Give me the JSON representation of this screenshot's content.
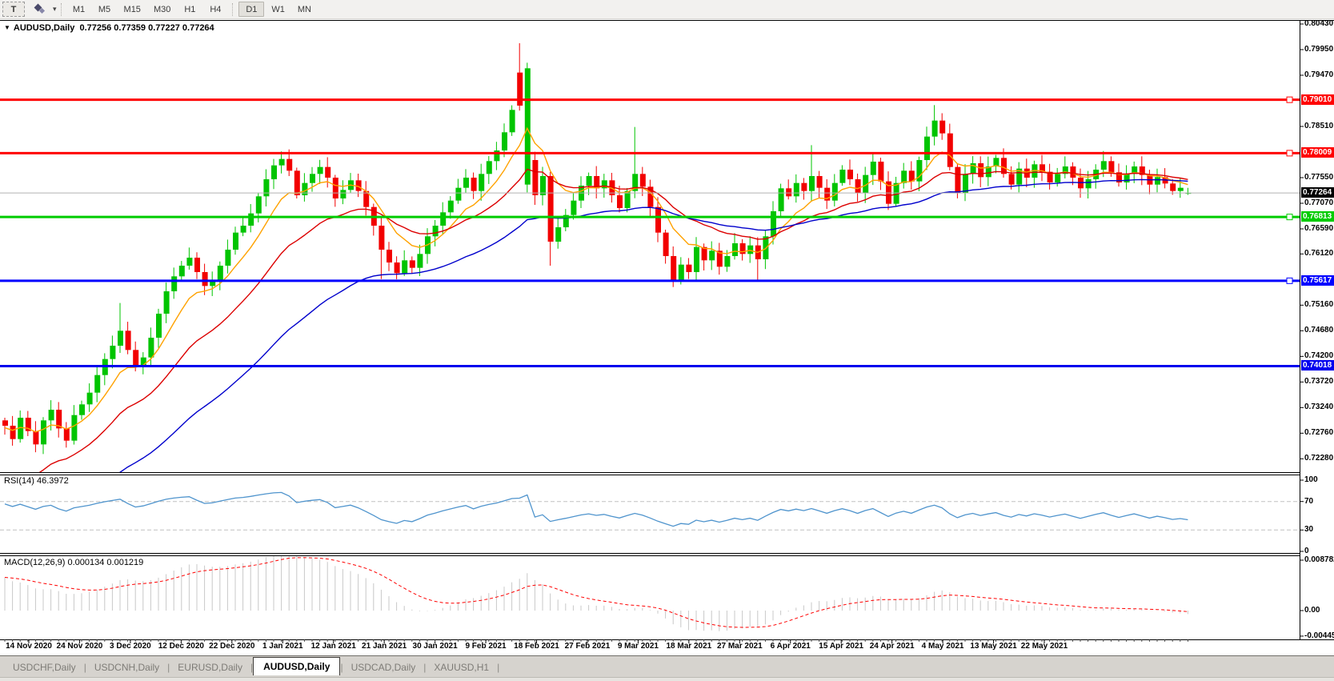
{
  "toolbar": {
    "t_label": "T",
    "timeframe_groups": [
      [
        "M1",
        "M5",
        "M15",
        "M30",
        "H1",
        "H4"
      ],
      [
        "D1",
        "W1",
        "MN"
      ]
    ],
    "active_timeframe": "D1"
  },
  "header": {
    "collapse_icon": "▼",
    "symbol_period": "AUDUSD,Daily",
    "ohlc": "0.77256 0.77359 0.77227 0.77264"
  },
  "rsi": {
    "label": "RSI(14) 46.3972",
    "levels": [
      100,
      70,
      30,
      0
    ],
    "color": "#4f94cd",
    "current": 46.3972
  },
  "macd": {
    "label": "MACD(12,26,9) 0.000134 0.001219",
    "axis_labels": [
      "0.008782",
      "0.00",
      "-0.00445"
    ],
    "axis_values": [
      0.008782,
      0.0,
      -0.00445
    ],
    "histogram_color": "#c8c8c8",
    "signal_color": "#ff0000"
  },
  "tabs": [
    {
      "label": "USDCHF,Daily",
      "active": false
    },
    {
      "label": "USDCNH,Daily",
      "active": false
    },
    {
      "label": "EURUSD,Daily",
      "active": false
    },
    {
      "label": "AUDUSD,Daily",
      "active": true
    },
    {
      "label": "USDCAD,Daily",
      "active": false
    },
    {
      "label": "XAUUSD,H1",
      "active": false
    }
  ],
  "chart_data": {
    "type": "candlestick",
    "symbol": "AUDUSD",
    "period": "Daily",
    "price_axis_ticks": [
      "0.80430",
      "0.79950",
      "0.79470",
      "0.78510",
      "0.77550",
      "0.77070",
      "0.76590",
      "0.76120",
      "0.75160",
      "0.74680",
      "0.74200",
      "0.73720",
      "0.73240",
      "0.72760",
      "0.72280"
    ],
    "levels": [
      {
        "price": 0.7901,
        "label": "0.79010",
        "color": "#ff0000",
        "marker": true
      },
      {
        "price": 0.78009,
        "label": "0.78009",
        "color": "#ff0000",
        "marker": true
      },
      {
        "price": 0.76813,
        "label": "0.76813",
        "color": "#00cc00",
        "marker": true
      },
      {
        "price": 0.75617,
        "label": "0.75617",
        "color": "#0000ff",
        "marker": true
      },
      {
        "price": 0.74018,
        "label": "0.74018",
        "color": "#0000ee",
        "marker": false
      }
    ],
    "current_price": {
      "value": 0.77264,
      "label": "0.77264",
      "box_color": "#000000"
    },
    "date_axis": [
      "14 Nov 2020",
      "24 Nov 2020",
      "3 Dec 2020",
      "12 Dec 2020",
      "22 Dec 2020",
      "1 Jan 2021",
      "12 Jan 2021",
      "21 Jan 2021",
      "30 Jan 2021",
      "9 Feb 2021",
      "18 Feb 2021",
      "27 Feb 2021",
      "9 Mar 2021",
      "18 Mar 2021",
      "27 Mar 2021",
      "6 Apr 2021",
      "15 Apr 2021",
      "24 Apr 2021",
      "4 May 2021",
      "13 May 2021",
      "22 May 2021"
    ],
    "colors": {
      "bull": "#00c400",
      "bear": "#f20000",
      "current_line": "#b2b2b2"
    },
    "mas": [
      {
        "period": 8,
        "color": "#ffa200",
        "seed": 0.7285
      },
      {
        "period": 20,
        "color": "#dc0000",
        "seed": 0.7145
      },
      {
        "period": 45,
        "color": "#0000cc",
        "seed": 0.706
      }
    ],
    "first_open": 0.73,
    "closes": [
      0.729,
      0.7265,
      0.7305,
      0.728,
      0.7255,
      0.73,
      0.732,
      0.7285,
      0.7262,
      0.731,
      0.733,
      0.7352,
      0.7385,
      0.7415,
      0.744,
      0.7468,
      0.7432,
      0.74,
      0.7418,
      0.7455,
      0.75,
      0.7542,
      0.757,
      0.759,
      0.7605,
      0.7578,
      0.7552,
      0.7562,
      0.759,
      0.762,
      0.7652,
      0.7665,
      0.7688,
      0.772,
      0.7752,
      0.7778,
      0.779,
      0.7768,
      0.7722,
      0.7745,
      0.7762,
      0.7775,
      0.7755,
      0.7716,
      0.7732,
      0.775,
      0.773,
      0.77,
      0.7665,
      0.762,
      0.7596,
      0.7576,
      0.76,
      0.7586,
      0.7612,
      0.7645,
      0.7665,
      0.769,
      0.7712,
      0.7736,
      0.7755,
      0.773,
      0.7762,
      0.7786,
      0.7806,
      0.784,
      0.7882,
      0.789,
      0.796,
      0.7722,
      0.7758,
      0.7635,
      0.7662,
      0.7685,
      0.7712,
      0.774,
      0.7758,
      0.7735,
      0.775,
      0.7722,
      0.7698,
      0.773,
      0.7762,
      0.7738,
      0.77,
      0.7652,
      0.7608,
      0.7562,
      0.7592,
      0.7578,
      0.7625,
      0.76,
      0.7618,
      0.7588,
      0.7608,
      0.7632,
      0.7612,
      0.7628,
      0.7602,
      0.7645,
      0.7692,
      0.7735,
      0.772,
      0.7745,
      0.773,
      0.7758,
      0.7736,
      0.7712,
      0.7745,
      0.777,
      0.7752,
      0.7726,
      0.776,
      0.7785,
      0.7748,
      0.7706,
      0.7745,
      0.7768,
      0.7748,
      0.7788,
      0.7832,
      0.7862,
      0.7838,
      0.7775,
      0.7726,
      0.7762,
      0.7782,
      0.7756,
      0.7776,
      0.7792,
      0.7762,
      0.7742,
      0.7772,
      0.7755,
      0.778,
      0.7766,
      0.7746,
      0.7762,
      0.7776,
      0.7755,
      0.7735,
      0.7752,
      0.777,
      0.7786,
      0.7765,
      0.7746,
      0.7762,
      0.7776,
      0.776,
      0.7742,
      0.7756,
      0.7744,
      0.773,
      0.7736,
      0.77264
    ],
    "special": {
      "15": {
        "h": 0.752
      },
      "49": {
        "l": 0.7565
      },
      "67": {
        "o": 0.7952,
        "h": 0.8007
      },
      "68": {
        "o": 0.7742
      },
      "69": {
        "o": 0.7788
      },
      "71": {
        "l": 0.759
      },
      "82": {
        "h": 0.785
      },
      "87": {
        "l": 0.755
      },
      "90": {
        "l": 0.7562
      },
      "98": {
        "l": 0.756
      },
      "105": {
        "h": 0.7816
      },
      "121": {
        "h": 0.7891
      },
      "154": {
        "o": 0.77256,
        "h": 0.77359,
        "l": 0.77227
      }
    }
  }
}
